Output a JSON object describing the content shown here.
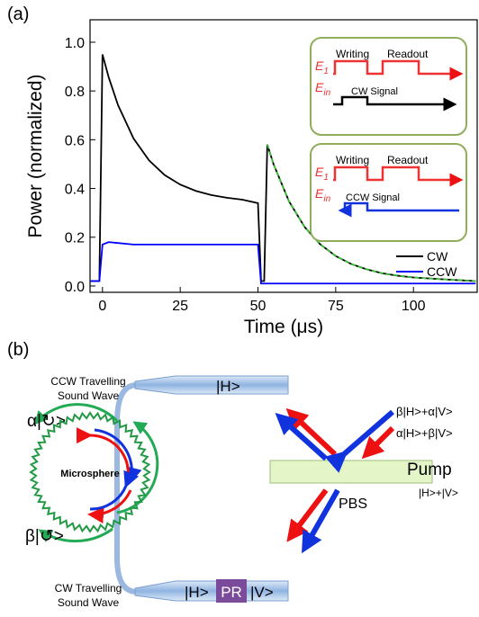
{
  "panel_a": "(a)",
  "panel_b": "(b)",
  "chart_data": {
    "type": "line",
    "xlabel": "Time (μs)",
    "ylabel": "Power (normalized)",
    "xlim": [
      -4,
      120.5
    ],
    "ylim": [
      -0.026,
      1.092
    ],
    "xticks": [
      0,
      25,
      50,
      75,
      100
    ],
    "yticks": [
      {
        "value": 0,
        "label": "0.0"
      },
      0.2,
      0.4,
      0.6,
      0.8,
      {
        "value": 1,
        "label": "1.0"
      }
    ],
    "legend": "lower right",
    "series": [
      {
        "name": "CW",
        "color": "#000000",
        "x": [
          -4,
          -1,
          0,
          2,
          5,
          10,
          15,
          20,
          25,
          30,
          35,
          40,
          45,
          50,
          51,
          52,
          53,
          55,
          60,
          65,
          70,
          75,
          80,
          85,
          90,
          95,
          100,
          110,
          120
        ],
        "values": [
          0.02,
          0.02,
          0.95,
          0.856,
          0.742,
          0.605,
          0.515,
          0.455,
          0.416,
          0.39,
          0.373,
          0.362,
          0.354,
          0.34,
          0.02,
          0.02,
          0.58,
          0.5,
          0.347,
          0.242,
          0.171,
          0.123,
          0.09,
          0.068,
          0.052,
          0.042,
          0.035,
          0.027,
          0.02
        ]
      },
      {
        "name": "CCW",
        "color": "#0000ff",
        "x": [
          -4,
          -1,
          0,
          2,
          10,
          20,
          30,
          40,
          50,
          51,
          60,
          80,
          100,
          120
        ],
        "values": [
          0.02,
          0.02,
          0.17,
          0.18,
          0.17,
          0.17,
          0.17,
          0.17,
          0.17,
          0.01,
          0.01,
          0.01,
          0.01,
          0.01
        ]
      },
      {
        "color": "#33cc33",
        "dashed": true,
        "x": [
          53,
          55,
          60,
          65,
          70,
          75,
          80,
          85,
          90,
          95,
          100,
          110,
          120
        ],
        "values": [
          0.58,
          0.5,
          0.347,
          0.242,
          0.171,
          0.123,
          0.09,
          0.068,
          0.052,
          0.042,
          0.035,
          0.027,
          0.02
        ]
      }
    ]
  },
  "insets": [
    {
      "e1": {
        "text": "E",
        "sub": "1"
      },
      "ein": {
        "text": "E",
        "sub": "in"
      },
      "writing": "Writing",
      "readout": "Readout",
      "signal": "CW Signal"
    },
    {
      "e1": {
        "text": "E",
        "sub": "1"
      },
      "ein": {
        "text": "E",
        "sub": "in"
      },
      "writing": "Writing",
      "readout": "Readout",
      "signal": "CCW Signal"
    }
  ],
  "diagram": {
    "ccw_wave": [
      "CCW Travelling",
      "Sound Wave"
    ],
    "cw_wave": [
      "CW Travelling",
      "Sound Wave"
    ],
    "alpha_state": "α|↻>",
    "beta_state": "β|↺>",
    "microsphere": "Microsphere",
    "top_port": "|H>",
    "bottom_in": "|H>",
    "pr": "PR",
    "bottom_out": "|V>",
    "out_state_1": "β|H>+α|V>",
    "out_state_2": "α|H>+β|V>",
    "pump": "Pump",
    "pump_state": "|H>+|V>",
    "pbs": "PBS"
  }
}
